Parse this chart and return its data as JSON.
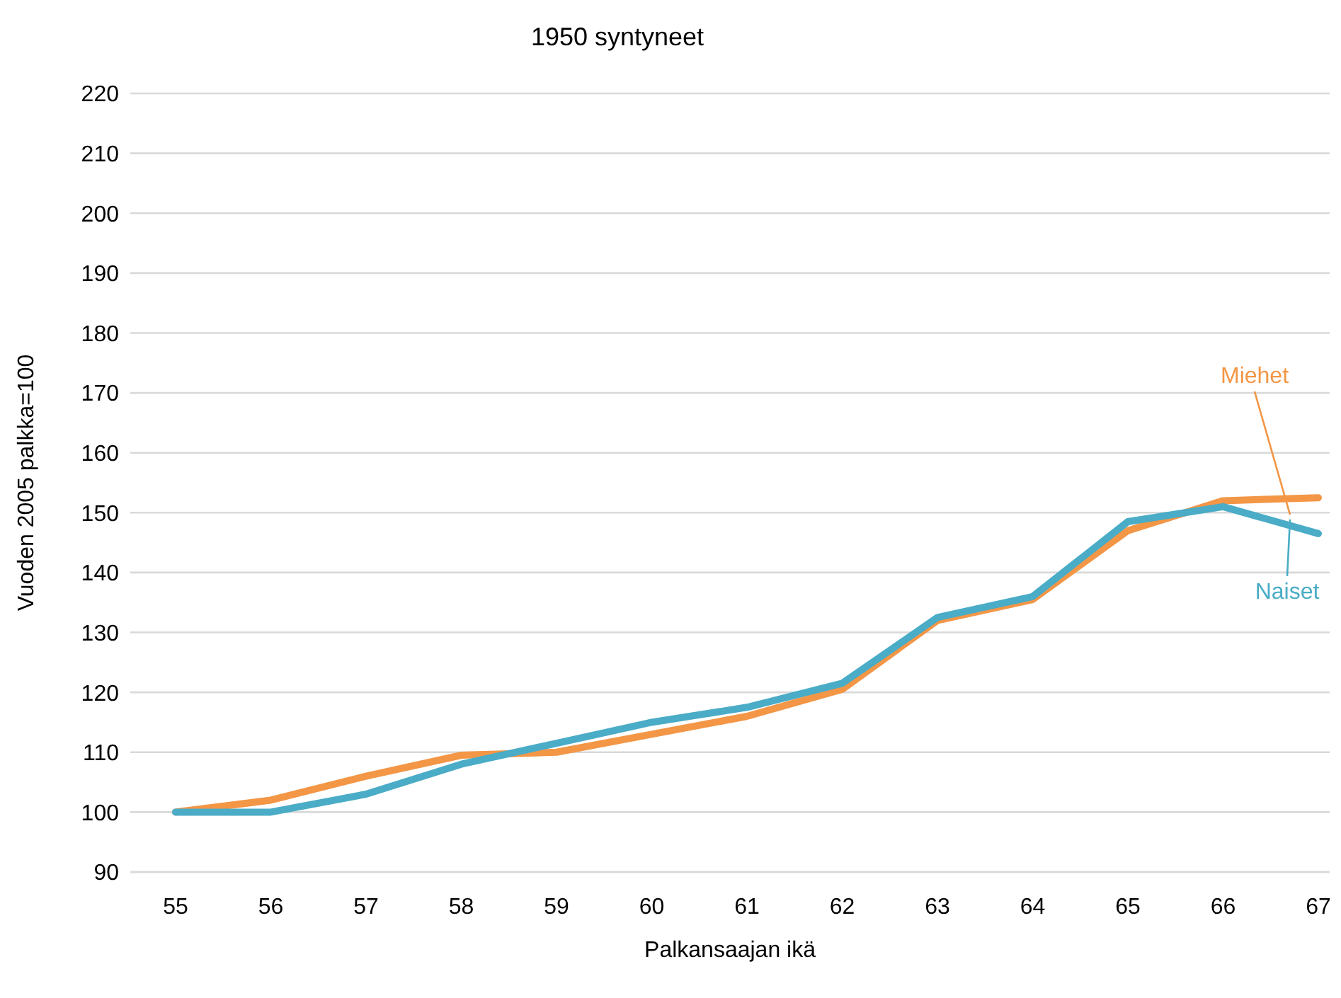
{
  "chart_data": {
    "type": "line",
    "title": "1950 syntyneet",
    "xlabel": "Palkansaajan ikä",
    "ylabel": "Vuoden 2005 palkka=100",
    "categories": [
      "55",
      "56",
      "57",
      "58",
      "59",
      "60",
      "61",
      "62",
      "63",
      "64",
      "65",
      "66",
      "67"
    ],
    "series": [
      {
        "name": "Miehet",
        "color": "#f39646",
        "values": [
          100,
          102,
          106,
          109.5,
          110,
          113,
          116,
          120.5,
          132,
          135.5,
          147,
          152,
          152.5
        ]
      },
      {
        "name": "Naiset",
        "color": "#4aacc6",
        "values": [
          100,
          100,
          103,
          108,
          111.5,
          115,
          117.5,
          121.5,
          132.5,
          136,
          148.5,
          151,
          146.5
        ]
      }
    ],
    "ylim": [
      90,
      220
    ],
    "yticks": [
      90,
      100,
      110,
      120,
      130,
      140,
      150,
      160,
      170,
      180,
      190,
      200,
      210,
      220
    ],
    "grid": "y",
    "legend": false,
    "marker": "none",
    "line_style": "solid"
  }
}
